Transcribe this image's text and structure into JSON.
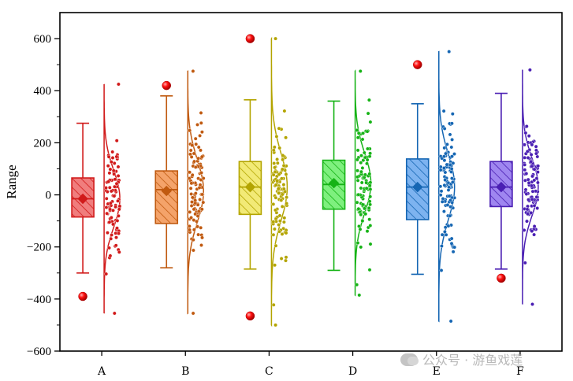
{
  "chart_data": {
    "type": "raincloud-box",
    "title": "",
    "xlabel": "",
    "ylabel": "Range",
    "ylim": [
      -600,
      700
    ],
    "yticks": [
      -600,
      -400,
      -200,
      0,
      200,
      400,
      600
    ],
    "ytick_labels": [
      "−600",
      "−400",
      "−200",
      "0",
      "200",
      "400",
      "600"
    ],
    "categories": [
      "A",
      "B",
      "C",
      "D",
      "E",
      "F"
    ],
    "groups": [
      {
        "name": "A",
        "color": "#d11a1a",
        "fill": "#f07d7d",
        "median": -15,
        "mean": -15,
        "q1": -85,
        "q3": 65,
        "whisker_low": -300,
        "whisker_high": 275,
        "outliers": [
          -390
        ],
        "data_min": -455,
        "data_max": 425,
        "spread": 110,
        "n": 90
      },
      {
        "name": "B",
        "color": "#c05a10",
        "fill": "#f4a36a",
        "median": 20,
        "mean": 15,
        "q1": -110,
        "q3": 92,
        "whisker_low": -280,
        "whisker_high": 380,
        "outliers": [
          420
        ],
        "data_min": -455,
        "data_max": 475,
        "spread": 120,
        "n": 100
      },
      {
        "name": "C",
        "color": "#b3a400",
        "fill": "#f2ea76",
        "median": 30,
        "mean": 30,
        "q1": -75,
        "q3": 128,
        "whisker_low": -285,
        "whisker_high": 365,
        "outliers": [
          600,
          -465
        ],
        "data_min": -500,
        "data_max": 600,
        "spread": 130,
        "n": 100
      },
      {
        "name": "D",
        "color": "#16b316",
        "fill": "#7ef07e",
        "median": 40,
        "mean": 45,
        "q1": -55,
        "q3": 133,
        "whisker_low": -290,
        "whisker_high": 360,
        "outliers": [],
        "data_min": -385,
        "data_max": 475,
        "spread": 115,
        "n": 100
      },
      {
        "name": "E",
        "color": "#1566b3",
        "fill": "#7db3f0",
        "median": 30,
        "mean": 30,
        "q1": -95,
        "q3": 138,
        "whisker_low": -305,
        "whisker_high": 350,
        "outliers": [
          500
        ],
        "data_min": -485,
        "data_max": 550,
        "spread": 125,
        "n": 100
      },
      {
        "name": "F",
        "color": "#4a1fb3",
        "fill": "#9f86f0",
        "median": 30,
        "mean": 30,
        "q1": -45,
        "q3": 128,
        "whisker_low": -285,
        "whisker_high": 390,
        "outliers": [
          -320
        ],
        "data_min": -420,
        "data_max": 480,
        "spread": 110,
        "n": 100
      }
    ]
  },
  "watermark": {
    "text": "公众号 · 游鱼戏莲"
  }
}
